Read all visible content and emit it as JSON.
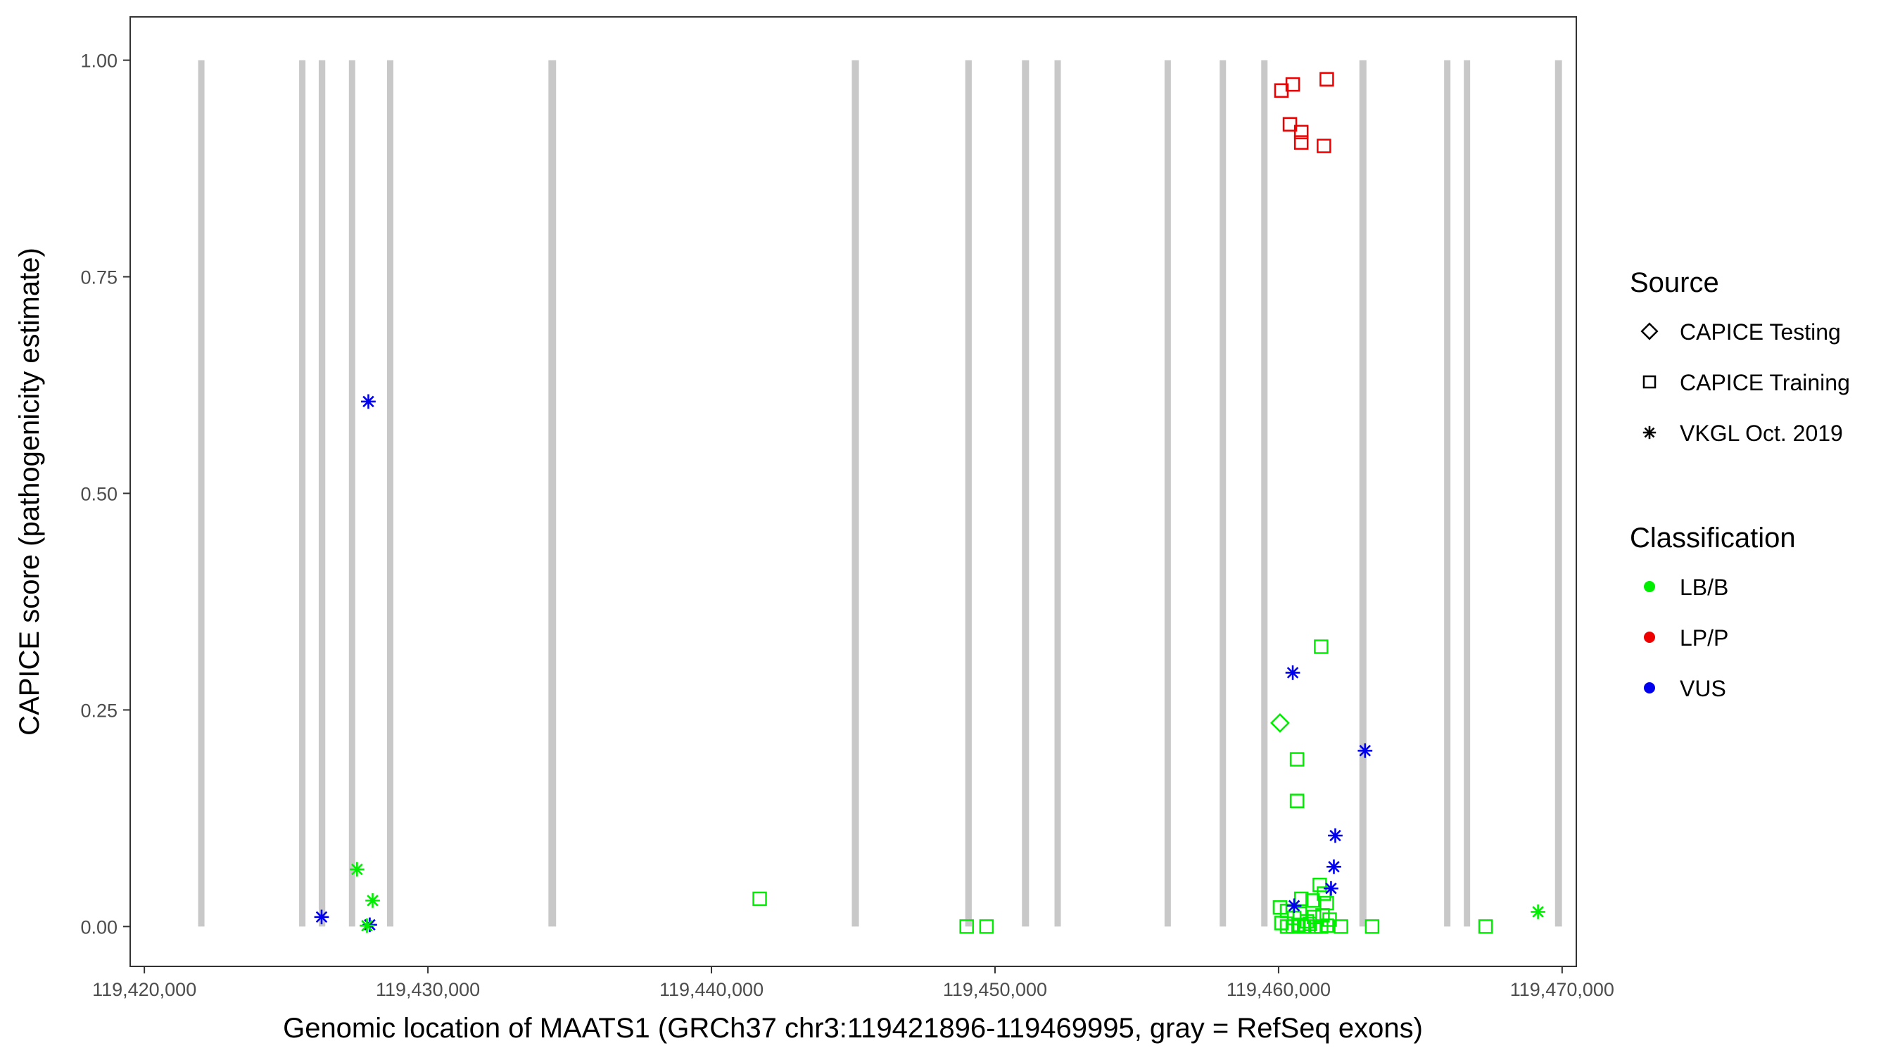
{
  "chart_data": {
    "type": "scatter",
    "title": "",
    "xlabel": "Genomic location of MAATS1 (GRCh37 chr3:119421896-119469995, gray = RefSeq exons)",
    "ylabel": "CAPICE score (pathogenicity estimate)",
    "xlim": [
      119419500,
      119470500
    ],
    "ylim": [
      -0.046,
      1.05
    ],
    "x_ticks": [
      119420000,
      119430000,
      119440000,
      119450000,
      119460000,
      119470000
    ],
    "x_tick_labels": [
      "119,420,000",
      "119,430,000",
      "119,440,000",
      "119,450,000",
      "119,460,000",
      "119,470,000"
    ],
    "y_ticks": [
      0,
      0.25,
      0.5,
      0.75,
      1.0
    ],
    "y_tick_labels": [
      "0.00",
      "0.25",
      "0.50",
      "0.75",
      "1.00"
    ],
    "grid": false,
    "exons": [
      {
        "start": 119421896,
        "end": 119422120
      },
      {
        "start": 119425500,
        "end": 119425640
      },
      {
        "start": 119426150,
        "end": 119426380
      },
      {
        "start": 119427230,
        "end": 119427420
      },
      {
        "start": 119428600,
        "end": 119428740
      },
      {
        "start": 119434250,
        "end": 119434520
      },
      {
        "start": 119444950,
        "end": 119445200
      },
      {
        "start": 119448950,
        "end": 119449180
      },
      {
        "start": 119450950,
        "end": 119451200
      },
      {
        "start": 119452100,
        "end": 119452320
      },
      {
        "start": 119456000,
        "end": 119456180
      },
      {
        "start": 119457950,
        "end": 119458120
      },
      {
        "start": 119459400,
        "end": 119459600
      },
      {
        "start": 119462850,
        "end": 119463100
      },
      {
        "start": 119465850,
        "end": 119466050
      },
      {
        "start": 119466550,
        "end": 119466740
      },
      {
        "start": 119469750,
        "end": 119469995
      }
    ],
    "legend": {
      "placement": "right",
      "source_title": "Source",
      "source_items": [
        {
          "label": "CAPICE Testing",
          "shape": "diamond"
        },
        {
          "label": "CAPICE Training",
          "shape": "square"
        },
        {
          "label": "VKGL Oct. 2019",
          "shape": "asterisk"
        }
      ],
      "class_title": "Classification",
      "class_items": [
        {
          "label": "LB/B",
          "color": "#00ee00"
        },
        {
          "label": "LP/P",
          "color": "#ee0000"
        },
        {
          "label": "VUS",
          "color": "#0000ee"
        }
      ]
    },
    "series": [
      {
        "source": "CAPICE Testing",
        "class": "LB/B",
        "points": [
          [
            119460050,
            0.235
          ]
        ]
      },
      {
        "source": "CAPICE Training",
        "class": "LP/P",
        "points": [
          [
            119460100,
            0.965
          ],
          [
            119460500,
            0.972
          ],
          [
            119461700,
            0.978
          ],
          [
            119460400,
            0.926
          ],
          [
            119460800,
            0.917
          ],
          [
            119460800,
            0.905
          ],
          [
            119461600,
            0.901
          ]
        ]
      },
      {
        "source": "CAPICE Training",
        "class": "LB/B",
        "points": [
          [
            119441700,
            0.032
          ],
          [
            119449000,
            0.0
          ],
          [
            119449700,
            0.0
          ],
          [
            119461500,
            0.323
          ],
          [
            119460650,
            0.193
          ],
          [
            119460650,
            0.145
          ],
          [
            119461450,
            0.048
          ],
          [
            119461600,
            0.038
          ],
          [
            119461200,
            0.03
          ],
          [
            119460800,
            0.032
          ],
          [
            119461700,
            0.027
          ],
          [
            119460050,
            0.022
          ],
          [
            119460300,
            0.018
          ],
          [
            119460550,
            0.01
          ],
          [
            119460750,
            0.015
          ],
          [
            119461000,
            0.006
          ],
          [
            119461250,
            0.011
          ],
          [
            119461550,
            0.013
          ],
          [
            119461800,
            0.008
          ],
          [
            119460100,
            0.004
          ],
          [
            119460300,
            0.0
          ],
          [
            119460500,
            0.0
          ],
          [
            119460700,
            0.002
          ],
          [
            119460900,
            0.0
          ],
          [
            119461100,
            0.003
          ],
          [
            119461300,
            0.0
          ],
          [
            119461500,
            0.0
          ],
          [
            119461700,
            0.001
          ],
          [
            119462200,
            0.0
          ],
          [
            119463300,
            0.0
          ],
          [
            119467300,
            0.0
          ]
        ]
      },
      {
        "source": "VKGL Oct. 2019",
        "class": "VUS",
        "points": [
          [
            119427900,
            0.606
          ],
          [
            119426250,
            0.011
          ],
          [
            119427950,
            0.002
          ],
          [
            119460500,
            0.293
          ],
          [
            119463050,
            0.203
          ],
          [
            119462000,
            0.105
          ],
          [
            119461950,
            0.069
          ],
          [
            119461850,
            0.044
          ],
          [
            119460550,
            0.024
          ]
        ]
      },
      {
        "source": "VKGL Oct. 2019",
        "class": "LB/B",
        "points": [
          [
            119427500,
            0.066
          ],
          [
            119428050,
            0.03
          ],
          [
            119427850,
            0.001
          ],
          [
            119469150,
            0.017
          ]
        ]
      }
    ]
  }
}
